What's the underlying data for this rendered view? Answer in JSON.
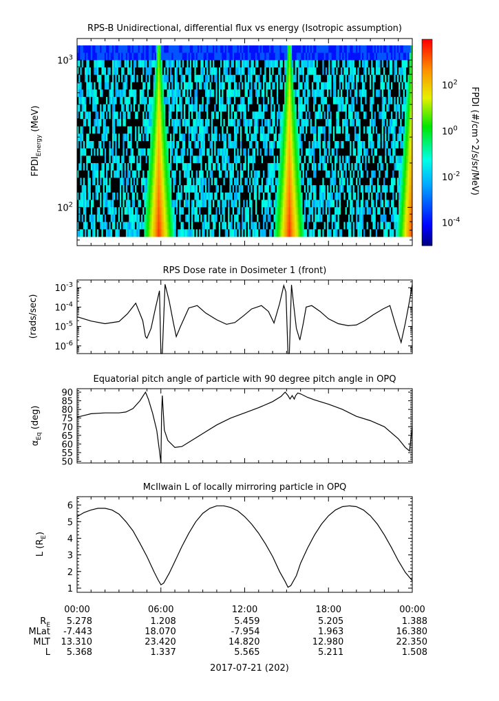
{
  "chart_data": [
    {
      "type": "heatmap",
      "title": "RPS-B  Unidirectional, differential flux vs energy (Isotropic assumption)",
      "ylabel_main": "FPDI",
      "ylabel_sub": "Energy",
      "ylabel_unit": " (MeV)",
      "y_scale": "log",
      "y_ticks": [
        {
          "exp": "3",
          "value": 1000
        },
        {
          "exp": "2",
          "value": 100
        }
      ],
      "ylim": [
        55,
        1400
      ],
      "colorbar": {
        "label": "FPDI (#/cm^2/s/sr/MeV)",
        "scale": "log",
        "range": [
          1e-05,
          10000.0
        ],
        "colormap": "rainbow",
        "ticks": [
          {
            "exp": "2",
            "value": 100
          },
          {
            "exp": "0",
            "value": 1
          },
          {
            "exp": "-2",
            "value": 0.01
          },
          {
            "exp": "-4",
            "value": 0.0001
          }
        ]
      },
      "peaks_hours": [
        5.85,
        15.2,
        24.0
      ]
    },
    {
      "type": "line",
      "title": "RPS  Dose rate in Dosimeter 1 (front)",
      "ylabel": "(rads/sec)",
      "y_scale": "log",
      "y_ticks": [
        {
          "exp": "-3",
          "value": 0.001
        },
        {
          "exp": "-4",
          "value": 0.0001
        },
        {
          "exp": "-5",
          "value": 1e-05
        },
        {
          "exp": "-6",
          "value": 1e-06
        }
      ],
      "ylim": [
        4e-07,
        0.0025
      ],
      "x": [
        0,
        1,
        2,
        3,
        3.6,
        4.2,
        4.7,
        4.9,
        5.0,
        5.3,
        5.6,
        5.9,
        6.0,
        6.1,
        6.3,
        6.6,
        6.9,
        7.1,
        7.4,
        8.0,
        8.6,
        9.2,
        10.0,
        10.7,
        11.3,
        11.9,
        12.5,
        13.2,
        13.7,
        14.1,
        14.5,
        14.8,
        14.95,
        15.1,
        15.2,
        15.35,
        15.5,
        15.7,
        15.95,
        16.2,
        16.4,
        16.8,
        17.4,
        18.0,
        18.7,
        19.4,
        20.0,
        20.6,
        21.2,
        21.9,
        22.4,
        22.8,
        23.2,
        23.5,
        23.8,
        24.0
      ],
      "y": [
        3.2e-05,
        1.9e-05,
        1.4e-05,
        1.8e-05,
        4.5e-05,
        0.00016,
        2e-05,
        3e-06,
        2.5e-06,
        8e-06,
        8e-05,
        0.0007,
        4e-07,
        4e-07,
        0.0015,
        0.0002,
        1.5e-05,
        3e-06,
        1e-05,
        9e-05,
        0.00012,
        5e-05,
        2.2e-05,
        1.3e-05,
        1.6e-05,
        3.5e-05,
        8e-05,
        0.00012,
        6e-05,
        1.5e-05,
        0.00015,
        0.0013,
        0.0006,
        4e-07,
        4e-07,
        0.0014,
        0.00015,
        8e-06,
        2e-06,
        1.5e-05,
        0.0001,
        0.00012,
        6e-05,
        2.5e-05,
        1.4e-05,
        1.1e-05,
        1.2e-05,
        2e-05,
        4e-05,
        8e-05,
        0.00012,
        1.2e-05,
        1.5e-06,
        1.5e-05,
        0.0002,
        0.0015
      ]
    },
    {
      "type": "line",
      "title": "Equatorial pitch angle of particle with 90 degree pitch angle in OPQ",
      "ylabel_prefix": "α",
      "ylabel_sub": "Eq",
      "ylabel_unit": " (deg)",
      "y_ticks": [
        50,
        55,
        60,
        65,
        70,
        75,
        80,
        85,
        90
      ],
      "ylim": [
        49,
        92
      ],
      "x": [
        0,
        0.5,
        1,
        2,
        3,
        3.5,
        4,
        4.5,
        4.9,
        5.1,
        5.4,
        5.7,
        5.9,
        6.0,
        6.05,
        6.1,
        6.25,
        6.5,
        7,
        7.5,
        8,
        9,
        10,
        11,
        12,
        13,
        14,
        14.6,
        14.9,
        15.1,
        15.25,
        15.4,
        15.55,
        15.65,
        15.8,
        16.0,
        16.5,
        17,
        18,
        19,
        20,
        21,
        22,
        23,
        23.5,
        23.8,
        24.0
      ],
      "y": [
        75.5,
        76.5,
        77.5,
        78,
        78,
        78.5,
        80.5,
        85,
        90,
        86,
        78,
        68,
        56,
        49,
        78,
        88,
        68,
        62,
        58,
        58.5,
        61,
        66,
        71,
        75,
        78,
        81,
        84.5,
        87.5,
        90,
        88,
        86,
        88,
        86,
        88,
        89.5,
        89,
        87,
        85.5,
        83,
        80,
        76,
        73.5,
        70,
        63,
        58,
        56,
        70
      ]
    },
    {
      "type": "line",
      "title": "McIlwain L of locally mirroring particle in OPQ",
      "ylabel_main": "L (R",
      "ylabel_sub": "E",
      "ylabel_unit": ")",
      "y_ticks": [
        1,
        2,
        3,
        4,
        5,
        6
      ],
      "ylim": [
        0.75,
        6.5
      ],
      "x": [
        0,
        0.5,
        1,
        1.5,
        2,
        2.5,
        3,
        3.5,
        4,
        4.5,
        5,
        5.5,
        5.8,
        6.0,
        6.2,
        6.6,
        7,
        7.5,
        8,
        8.5,
        9,
        9.5,
        10,
        10.5,
        11,
        11.5,
        12,
        12.5,
        13,
        13.5,
        14,
        14.5,
        14.9,
        15.1,
        15.3,
        15.7,
        16,
        16.5,
        17,
        17.5,
        18,
        18.5,
        19,
        19.5,
        20,
        20.5,
        21,
        21.5,
        22,
        22.5,
        23,
        23.5,
        24.0
      ],
      "y": [
        5.3,
        5.55,
        5.7,
        5.8,
        5.8,
        5.7,
        5.45,
        5.0,
        4.45,
        3.7,
        2.9,
        2.0,
        1.5,
        1.2,
        1.3,
        1.9,
        2.6,
        3.5,
        4.3,
        5.0,
        5.5,
        5.8,
        5.95,
        5.95,
        5.85,
        5.65,
        5.3,
        4.85,
        4.3,
        3.65,
        2.9,
        2.0,
        1.4,
        1.05,
        1.15,
        1.75,
        2.5,
        3.4,
        4.2,
        4.85,
        5.35,
        5.7,
        5.9,
        5.95,
        5.9,
        5.7,
        5.35,
        4.85,
        4.2,
        3.45,
        2.65,
        1.95,
        1.45
      ]
    }
  ],
  "x_axis": {
    "tick_labels": [
      "00:00",
      "06:00",
      "12:00",
      "18:00",
      "00:00"
    ],
    "tick_hours": [
      0,
      6,
      12,
      18,
      24
    ],
    "minor_step_hours": 1
  },
  "ephemeris": {
    "rows": [
      {
        "name": "R",
        "sub": "E",
        "values": [
          "5.278",
          "1.208",
          "5.459",
          "5.205",
          "1.388"
        ]
      },
      {
        "name": "MLat",
        "sub": "",
        "values": [
          "-7.443",
          "18.070",
          "-7.954",
          "1.963",
          "16.380"
        ]
      },
      {
        "name": "MLT",
        "sub": "",
        "values": [
          "13.310",
          "23.420",
          "14.820",
          "12.980",
          "22.350"
        ]
      },
      {
        "name": "L",
        "sub": "",
        "values": [
          "5.368",
          "1.337",
          "5.565",
          "5.211",
          "1.508"
        ]
      }
    ]
  },
  "date_label": "2017-07-21 (202)"
}
